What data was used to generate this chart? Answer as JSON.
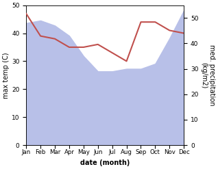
{
  "months": [
    "Jan",
    "Feb",
    "Mar",
    "Apr",
    "May",
    "Jun",
    "Jul",
    "Aug",
    "Sep",
    "Oct",
    "Nov",
    "Dec"
  ],
  "x": [
    0,
    1,
    2,
    3,
    4,
    5,
    6,
    7,
    8,
    9,
    10,
    11
  ],
  "temperature": [
    47,
    39,
    38,
    35,
    35,
    36,
    33,
    30,
    44,
    44,
    41,
    40
  ],
  "precipitation": [
    48,
    49,
    47,
    43,
    35,
    29,
    29,
    30,
    30,
    32,
    42,
    53
  ],
  "temp_color": "#c0504d",
  "precip_fill_color": "#b8c0e8",
  "xlabel": "date (month)",
  "ylabel_left": "max temp (C)",
  "ylabel_right": "med. precipitation\n(kg/m2)",
  "ylim_left": [
    0,
    50
  ],
  "ylim_right": [
    0,
    55
  ],
  "yticks_left": [
    0,
    10,
    20,
    30,
    40,
    50
  ],
  "yticks_right": [
    0,
    10,
    20,
    30,
    40,
    50
  ],
  "bg_color": "#ffffff",
  "temp_linewidth": 1.5,
  "xlabel_fontsize": 7,
  "ylabel_fontsize": 7,
  "tick_fontsize": 6.5,
  "month_fontsize": 6.2
}
